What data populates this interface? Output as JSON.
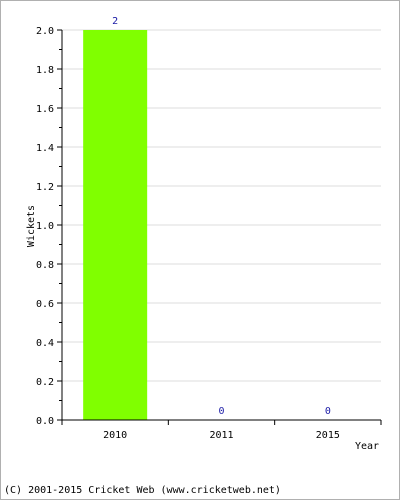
{
  "chart_data": {
    "type": "bar",
    "categories": [
      "2010",
      "2011",
      "2015"
    ],
    "values": [
      2,
      0,
      0
    ],
    "data_labels": [
      "2",
      "0",
      "0"
    ],
    "title": "",
    "xlabel": "Year",
    "ylabel": "Wickets",
    "ylim": [
      0,
      2.0
    ],
    "y_ticks": [
      "0.0",
      "0.2",
      "0.4",
      "0.6",
      "0.8",
      "1.0",
      "1.2",
      "1.4",
      "1.6",
      "1.8",
      "2.0"
    ],
    "grid": true,
    "bar_color": "#80ff00",
    "label_color": "#1a1aa6"
  },
  "footer": {
    "copyright": "(C) 2001-2015 Cricket Web (www.cricketweb.net)"
  }
}
